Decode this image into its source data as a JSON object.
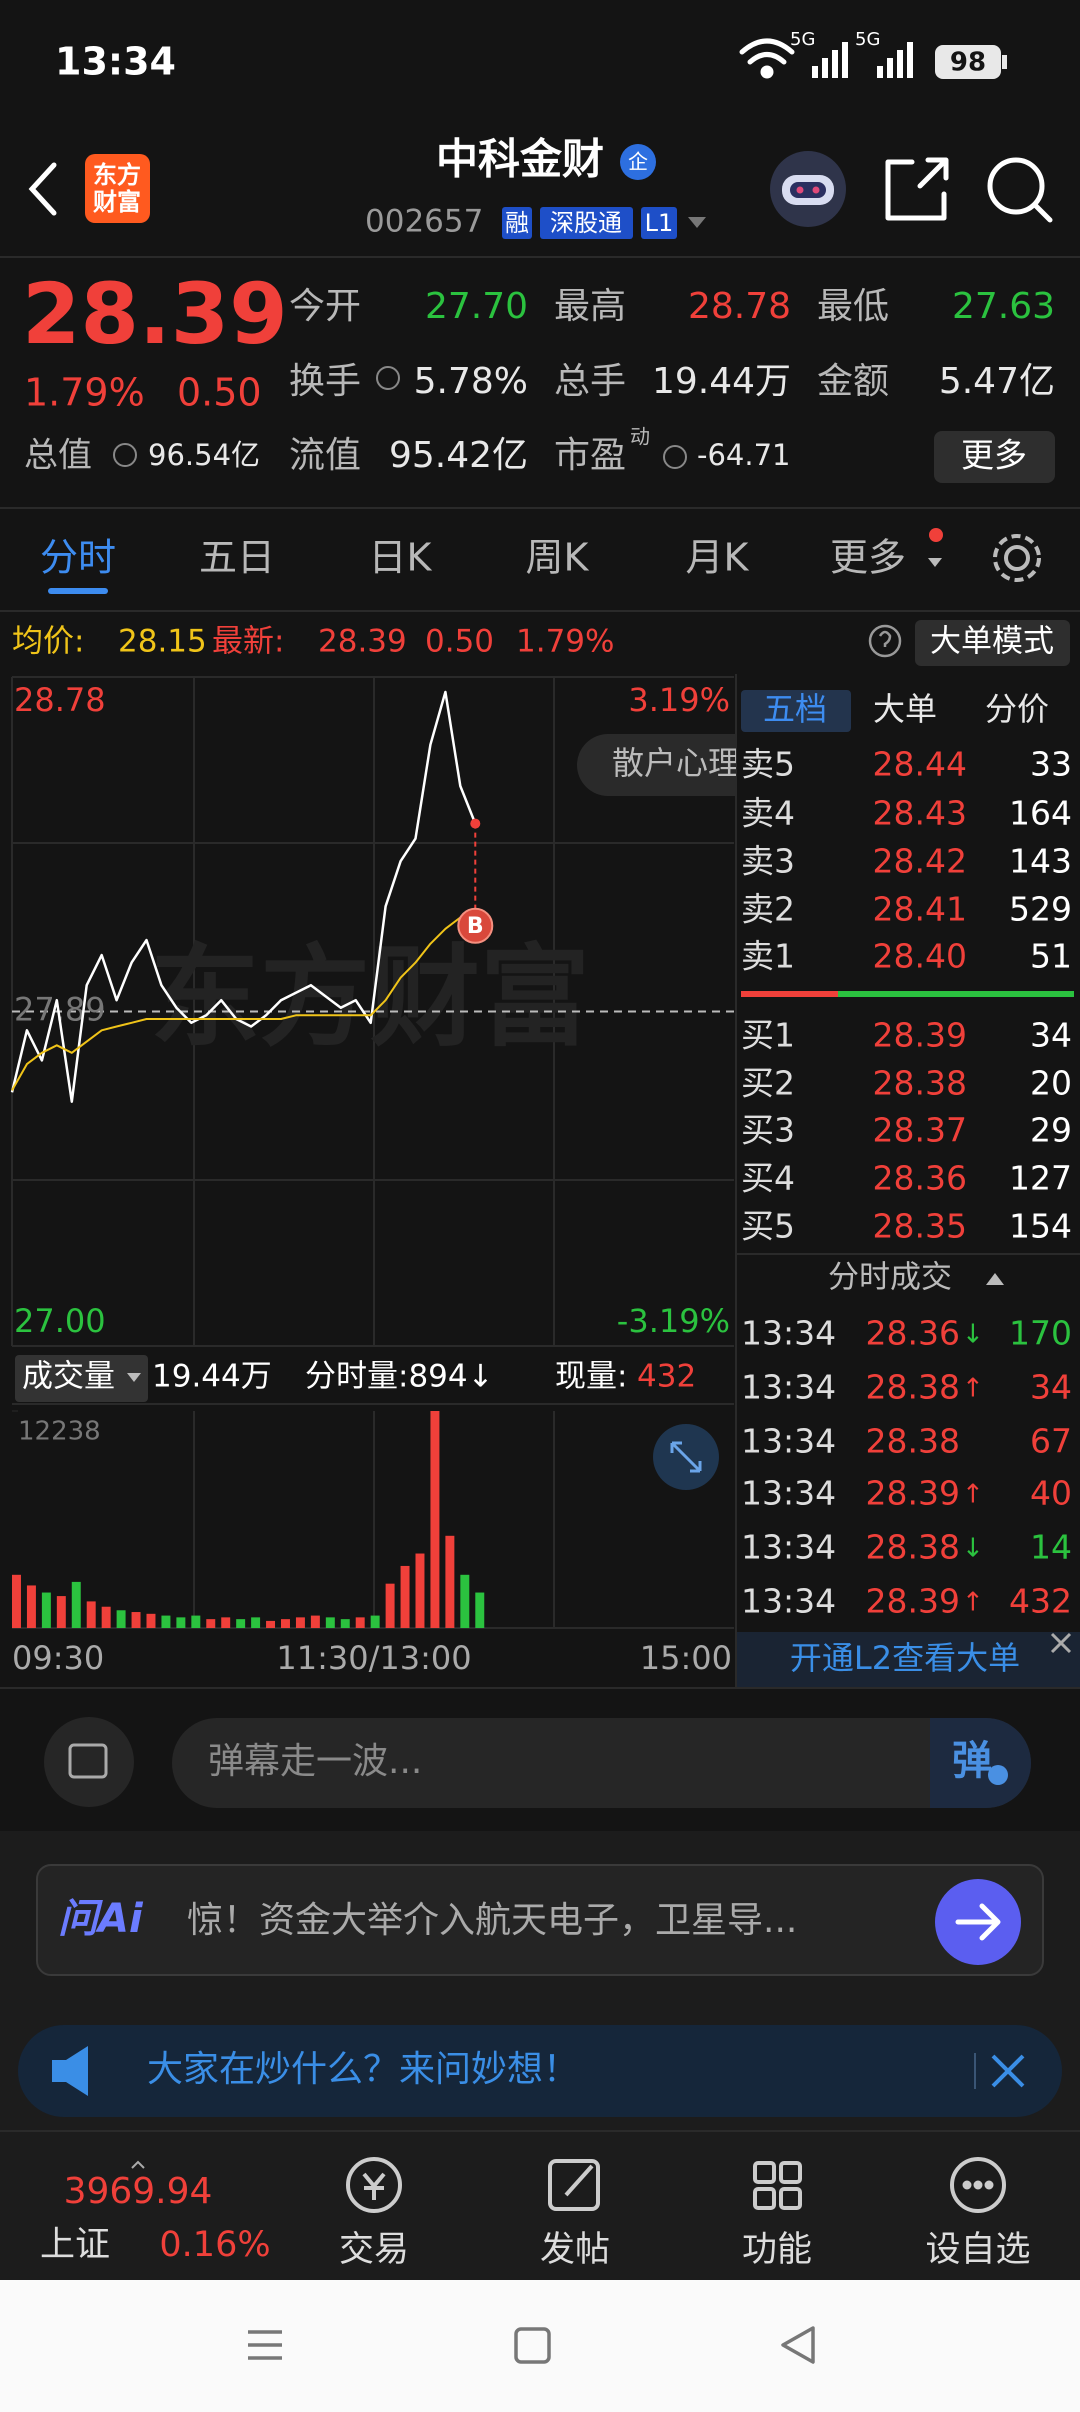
{
  "status_bar": {
    "time": "13:34",
    "network_1": "5G",
    "network_2": "5G",
    "battery": "98"
  },
  "header": {
    "logo": [
      "东方",
      "财富"
    ],
    "title": "中科金财",
    "title_badge": "企",
    "code": "002657",
    "tags": [
      "融",
      "深股通",
      "L1"
    ]
  },
  "quote": {
    "price": "28.39",
    "change_pct": "1.79%",
    "change": "0.50",
    "total_value_label": "总值",
    "total_value": "96.54亿",
    "stats": [
      {
        "label": "今开",
        "value": "27.70"
      },
      {
        "label": "最高",
        "value": "28.78"
      },
      {
        "label": "最低",
        "value": "27.63"
      },
      {
        "label": "换手",
        "value": "5.78%"
      },
      {
        "label": "总手",
        "value": "19.44万"
      },
      {
        "label": "金额",
        "value": "5.47亿"
      },
      {
        "label": "流值",
        "value": "95.42亿"
      },
      {
        "label": "市盈",
        "value": "-64.71"
      }
    ],
    "pe_superscript": "动",
    "more_button": "更多"
  },
  "tabs": [
    "分时",
    "五日",
    "日K",
    "周K",
    "月K",
    "更多"
  ],
  "info_bar": {
    "avg_label": "均价:",
    "avg": "28.15",
    "latest_label": "最新:",
    "latest": "28.39",
    "change": "0.50",
    "change_pct": "1.79%",
    "mode_button": "大单模式"
  },
  "intraday_chart": {
    "type": "line",
    "watermark": "东方财富",
    "popup": "散户心理",
    "marker": "B",
    "up_color": "#f0403a",
    "down_color": "#2bc23f",
    "ylim": [
      27,
      28.78
    ],
    "yticks": [
      28.78,
      27.89,
      {
        "value": 27,
        "label": "27.00"
      }
    ],
    "y2lim": [
      -3.19,
      3.19
    ],
    "y2ticks": [
      {
        "value": 3.19,
        "label": "3.19%"
      },
      {
        "value": -3.19,
        "label": "-3.19%"
      }
    ],
    "xlabels": [
      "09:30",
      "11:30/13:00",
      "15:00"
    ],
    "series": [
      {
        "color": "#ffffff",
        "values": [
          27.675,
          27.84,
          27.76,
          27.92,
          27.65,
          27.96,
          28.04,
          27.92,
          28.02,
          28.08,
          27.96,
          27.9,
          27.86,
          27.88,
          27.92,
          27.87,
          27.85,
          27.88,
          27.92,
          27.94,
          27.96,
          27.93,
          27.9,
          27.92,
          27.86,
          28.17,
          28.29,
          28.35,
          28.6,
          28.74,
          28.49,
          28.39
        ]
      },
      {
        "color": "#f0c419",
        "values": [
          27.68,
          27.75,
          27.78,
          27.8,
          27.78,
          27.81,
          27.84,
          27.85,
          27.86,
          27.87,
          27.87,
          27.87,
          27.87,
          27.87,
          27.87,
          27.87,
          27.87,
          27.87,
          27.87,
          27.88,
          27.88,
          27.88,
          27.88,
          27.88,
          27.88,
          27.92,
          27.98,
          28.02,
          28.07,
          28.11,
          28.14,
          28.15
        ]
      }
    ]
  },
  "volume_chart": {
    "type": "bar",
    "header": {
      "label": "成交量",
      "total": "19.44万",
      "minute_volume": "分时量:894↓",
      "current_label": "现量:",
      "current": "432"
    },
    "ylim": [
      0,
      12238
    ],
    "yticks": [
      12238
    ],
    "values": [
      3000,
      2400,
      2000,
      1800,
      2600,
      1500,
      1200,
      1000,
      900,
      800,
      700,
      600,
      700,
      500,
      600,
      500,
      600,
      400,
      500,
      600,
      700,
      600,
      500,
      600,
      700,
      2500,
      3500,
      4200,
      12238,
      5200,
      3000,
      2000
    ]
  },
  "order_book": {
    "tabs": [
      "五档",
      "大单",
      "分价"
    ],
    "asks": [
      {
        "label": "卖5",
        "price": "28.44",
        "volume": "33"
      },
      {
        "label": "卖4",
        "price": "28.43",
        "volume": "164"
      },
      {
        "label": "卖3",
        "price": "28.42",
        "volume": "143"
      },
      {
        "label": "卖2",
        "price": "28.41",
        "volume": "529"
      },
      {
        "label": "卖1",
        "price": "28.40",
        "volume": "51"
      }
    ],
    "bids": [
      {
        "label": "买1",
        "price": "28.39",
        "volume": "34"
      },
      {
        "label": "买2",
        "price": "28.38",
        "volume": "20"
      },
      {
        "label": "买3",
        "price": "28.37",
        "volume": "29"
      },
      {
        "label": "买4",
        "price": "28.36",
        "volume": "127"
      },
      {
        "label": "买5",
        "price": "28.35",
        "volume": "154"
      }
    ],
    "trades_title": "分时成交",
    "trades": [
      {
        "time": "13:34",
        "price": "28.36",
        "arrow": "↓",
        "volume": "170",
        "color": "#2bc23f"
      },
      {
        "time": "13:34",
        "price": "28.38",
        "arrow": "↑",
        "volume": "34",
        "color": "#f0403a"
      },
      {
        "time": "13:34",
        "price": "28.38",
        "volume": "67",
        "color": "#f0403a"
      },
      {
        "time": "13:34",
        "price": "28.39",
        "arrow": "↑",
        "volume": "40",
        "color": "#f0403a"
      },
      {
        "time": "13:34",
        "price": "28.38",
        "arrow": "↓",
        "volume": "14",
        "color": "#2bc23f"
      },
      {
        "time": "13:34",
        "price": "28.39",
        "arrow": "↑",
        "volume": "432",
        "color": "#f0403a"
      }
    ],
    "l2_link": "开通L2查看大单"
  },
  "danmu": {
    "placeholder": "弹幕走一波...",
    "button": "弹"
  },
  "ai_bar": {
    "logo": "问Ai",
    "text": "惊！资金大举介入航天电子，卫星导..."
  },
  "banner": {
    "text": "大家在炒什么？来问妙想！"
  },
  "bottom_nav": {
    "index_value": "3969.94",
    "index_name": "上证",
    "index_change": "0.16%",
    "items": [
      "交易",
      "发帖",
      "功能",
      "设自选"
    ]
  }
}
